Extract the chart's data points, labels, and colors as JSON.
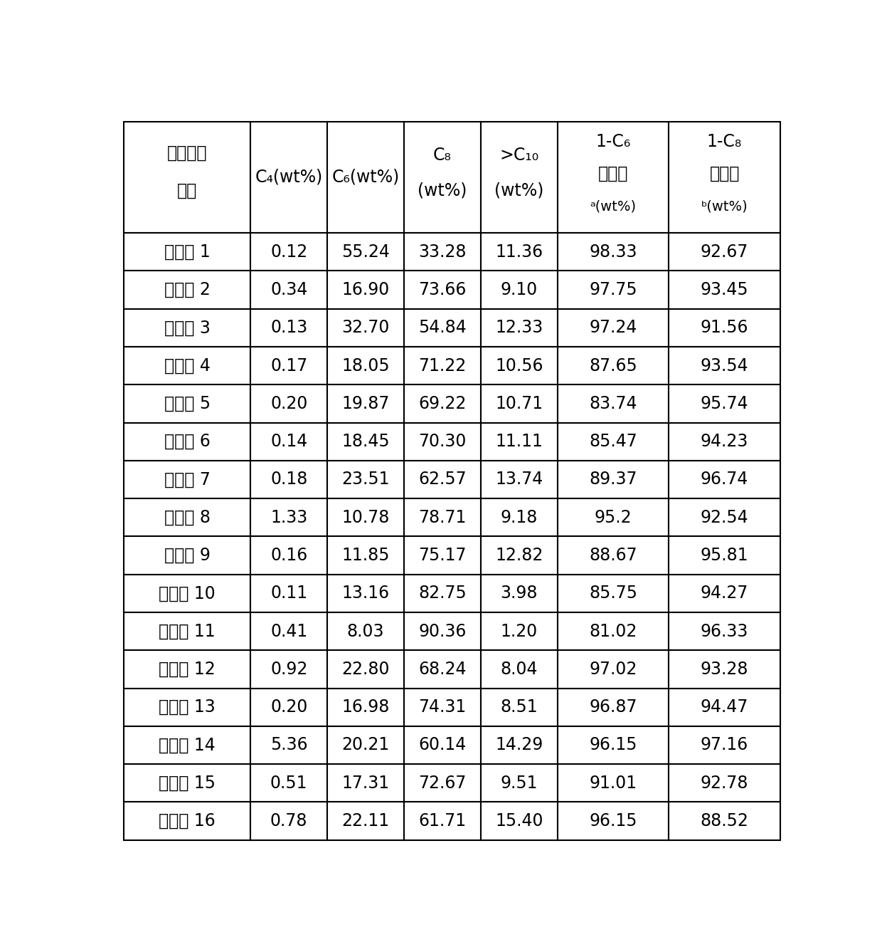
{
  "col_headers": [
    [
      "产物碳数",
      "分布",
      "",
      ""
    ],
    [
      "C₄(wt%)",
      "",
      "",
      ""
    ],
    [
      "C₆(wt%)",
      "",
      "",
      ""
    ],
    [
      "C₈",
      "(wt%)",
      "",
      ""
    ],
    [
      ">C₁₀",
      "(wt%)",
      "",
      ""
    ],
    [
      "1-C₆",
      "选择性",
      "ᵃ(wt%)",
      ""
    ],
    [
      "1-C₈",
      "选择性",
      "ᵇ(wt%)",
      ""
    ]
  ],
  "rows": [
    [
      "实施例 1",
      "0.12",
      "55.24",
      "33.28",
      "11.36",
      "98.33",
      "92.67"
    ],
    [
      "实施例 2",
      "0.34",
      "16.90",
      "73.66",
      "9.10",
      "97.75",
      "93.45"
    ],
    [
      "实施例 3",
      "0.13",
      "32.70",
      "54.84",
      "12.33",
      "97.24",
      "91.56"
    ],
    [
      "实施例 4",
      "0.17",
      "18.05",
      "71.22",
      "10.56",
      "87.65",
      "93.54"
    ],
    [
      "实施例 5",
      "0.20",
      "19.87",
      "69.22",
      "10.71",
      "83.74",
      "95.74"
    ],
    [
      "实施例 6",
      "0.14",
      "18.45",
      "70.30",
      "11.11",
      "85.47",
      "94.23"
    ],
    [
      "实施例 7",
      "0.18",
      "23.51",
      "62.57",
      "13.74",
      "89.37",
      "96.74"
    ],
    [
      "实施例 8",
      "1.33",
      "10.78",
      "78.71",
      "9.18",
      "95.2",
      "92.54"
    ],
    [
      "实施例 9",
      "0.16",
      "11.85",
      "75.17",
      "12.82",
      "88.67",
      "95.81"
    ],
    [
      "实施例 10",
      "0.11",
      "13.16",
      "82.75",
      "3.98",
      "85.75",
      "94.27"
    ],
    [
      "实施例 11",
      "0.41",
      "8.03",
      "90.36",
      "1.20",
      "81.02",
      "96.33"
    ],
    [
      "实施例 12",
      "0.92",
      "22.80",
      "68.24",
      "8.04",
      "97.02",
      "93.28"
    ],
    [
      "实施例 13",
      "0.20",
      "16.98",
      "74.31",
      "8.51",
      "96.87",
      "94.47"
    ],
    [
      "实施例 14",
      "5.36",
      "20.21",
      "60.14",
      "14.29",
      "96.15",
      "97.16"
    ],
    [
      "实施例 15",
      "0.51",
      "17.31",
      "72.67",
      "9.51",
      "91.01",
      "92.78"
    ],
    [
      "实施例 16",
      "0.78",
      "22.11",
      "61.71",
      "15.40",
      "96.15",
      "88.52"
    ]
  ],
  "col_widths_ratio": [
    1.65,
    1.0,
    1.0,
    1.0,
    1.0,
    1.45,
    1.45
  ],
  "bg_color": "#ffffff",
  "border_color": "#000000",
  "text_color": "#000000",
  "font_size": 17,
  "font_size_small": 14
}
